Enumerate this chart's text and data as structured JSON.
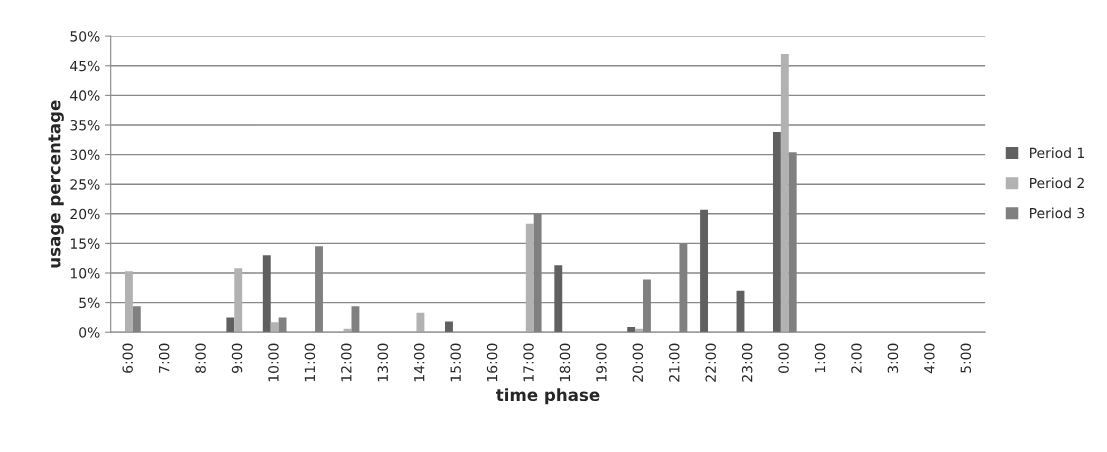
{
  "chart_data": {
    "type": "bar",
    "xlabel": "time phase",
    "ylabel": "usage percentage",
    "categories": [
      "6:00",
      "7:00",
      "8:00",
      "9:00",
      "10:00",
      "11:00",
      "12:00",
      "13:00",
      "14:00",
      "15:00",
      "16:00",
      "17:00",
      "18:00",
      "19:00",
      "20:00",
      "21:00",
      "22:00",
      "23:00",
      "0:00",
      "1:00",
      "2:00",
      "3:00",
      "4:00",
      "5:00"
    ],
    "series": [
      {
        "name": "Period 1",
        "color": "#606060",
        "values": [
          0,
          0,
          0,
          2.5,
          13,
          0,
          0,
          0,
          0,
          1.8,
          0,
          0,
          11.3,
          0,
          0.9,
          0,
          20.7,
          7,
          33.8,
          0,
          0,
          0,
          0,
          0
        ]
      },
      {
        "name": "Period 2",
        "color": "#b2b2b2",
        "values": [
          10.3,
          0,
          0,
          10.8,
          1.7,
          0,
          0.6,
          0,
          3.3,
          0,
          0,
          18.3,
          0,
          0,
          0.6,
          0,
          0,
          0,
          47,
          0,
          0,
          0,
          0,
          0
        ]
      },
      {
        "name": "Period 3",
        "color": "#808080",
        "values": [
          4.4,
          0,
          0,
          0,
          2.5,
          14.5,
          4.4,
          0,
          0,
          0,
          0,
          20,
          0,
          0,
          8.9,
          15,
          0,
          0,
          30.4,
          0,
          0,
          0,
          0,
          0
        ]
      }
    ],
    "ylim": [
      0,
      50
    ],
    "yticks": [
      {
        "value": 0,
        "label": "0%"
      },
      {
        "value": 5,
        "label": "5%"
      },
      {
        "value": 10,
        "label": "10%"
      },
      {
        "value": 15,
        "label": "15%"
      },
      {
        "value": 20,
        "label": "20%"
      },
      {
        "value": 25,
        "label": "25%"
      },
      {
        "value": 30,
        "label": "30%"
      },
      {
        "value": 35,
        "label": "35%"
      },
      {
        "value": 40,
        "label": "40%"
      },
      {
        "value": 45,
        "label": "45%"
      },
      {
        "value": 50,
        "label": "50%"
      }
    ],
    "grid": "y",
    "legend": "right"
  }
}
